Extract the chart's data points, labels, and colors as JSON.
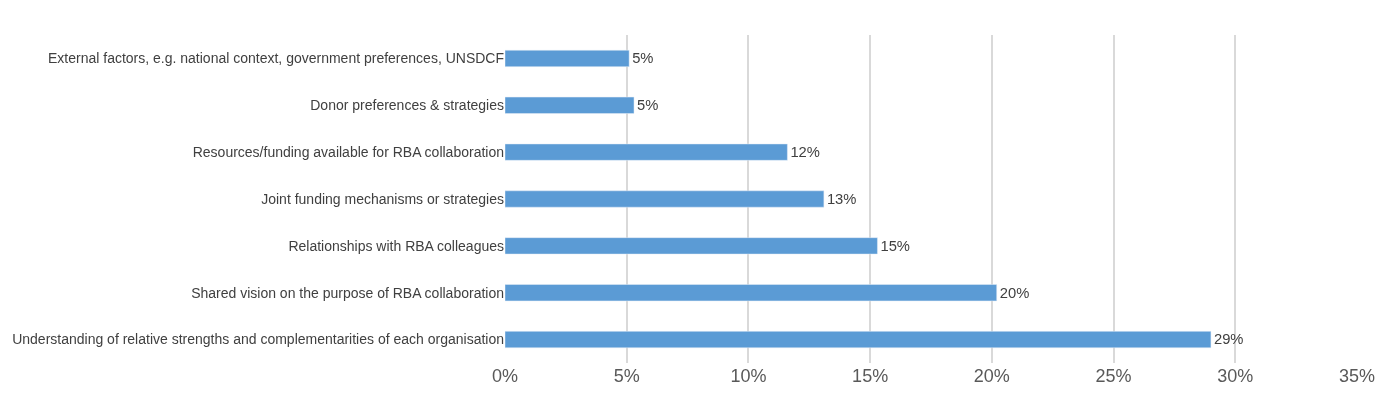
{
  "chart_data": {
    "type": "bar",
    "orientation": "horizontal",
    "categories": [
      "External factors, e.g. national context, government preferences, UNSDCF",
      "Donor preferences & strategies",
      "Resources/funding available for RBA collaboration",
      "Joint funding mechanisms or strategies",
      "Relationships with RBA colleagues",
      "Shared vision on the purpose of RBA collaboration",
      "Understanding of relative strengths and complementarities of each organisation"
    ],
    "values": [
      5.1,
      5.3,
      11.6,
      13.1,
      15.3,
      20.2,
      29.0
    ],
    "value_labels": [
      "5%",
      "5%",
      "12%",
      "13%",
      "15%",
      "20%",
      "29%"
    ],
    "color": "#5b9bd5",
    "xlim": [
      0,
      35
    ],
    "xticks": [
      {
        "value": 0,
        "label": "0%"
      },
      {
        "value": 5,
        "label": "5%"
      },
      {
        "value": 10,
        "label": "10%"
      },
      {
        "value": 15,
        "label": "15%"
      },
      {
        "value": 20,
        "label": "20%"
      },
      {
        "value": 25,
        "label": "25%"
      },
      {
        "value": 30,
        "label": "30%"
      },
      {
        "value": 35,
        "label": "35%"
      }
    ],
    "grid": "x",
    "legend": false
  }
}
